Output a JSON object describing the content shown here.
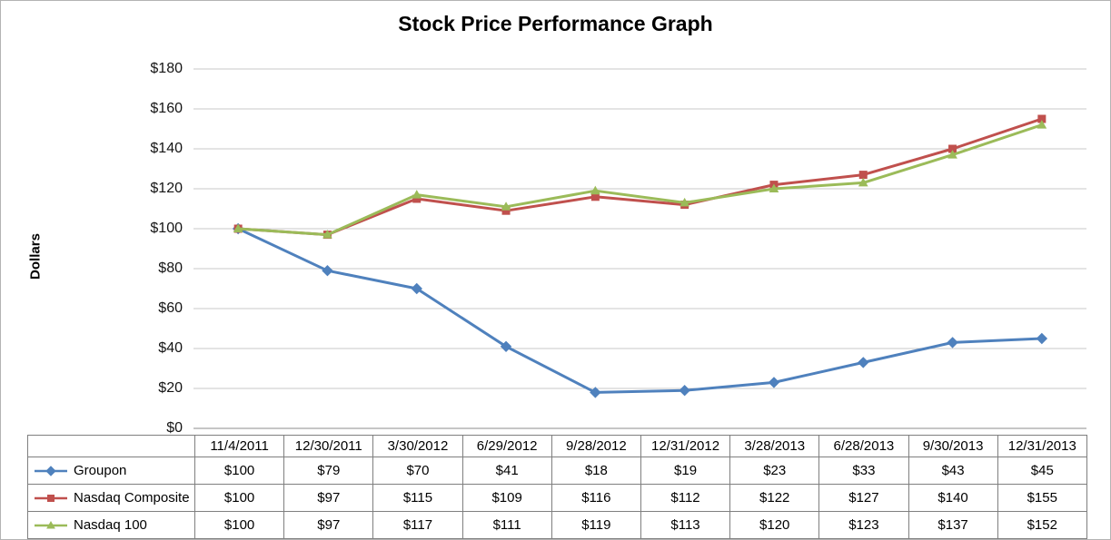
{
  "title": "Stock Price Performance Graph",
  "ylabel": "Dollars",
  "chart_data": {
    "type": "line",
    "categories": [
      "11/4/2011",
      "12/30/2011",
      "3/30/2012",
      "6/29/2012",
      "9/28/2012",
      "12/31/2012",
      "3/28/2013",
      "6/28/2013",
      "9/30/2013",
      "12/31/2013"
    ],
    "series": [
      {
        "name": "Groupon",
        "marker": "diamond",
        "color": "#4f81bd",
        "values": [
          100,
          79,
          70,
          41,
          18,
          19,
          23,
          33,
          43,
          45
        ]
      },
      {
        "name": "Nasdaq Composite",
        "marker": "square",
        "color": "#c0504d",
        "values": [
          100,
          97,
          115,
          109,
          116,
          112,
          122,
          127,
          140,
          155
        ]
      },
      {
        "name": "Nasdaq 100",
        "marker": "triangle",
        "color": "#9bbb59",
        "values": [
          100,
          97,
          117,
          111,
          119,
          113,
          120,
          123,
          137,
          152
        ]
      }
    ],
    "ylim": [
      0,
      180
    ],
    "ystep": 20,
    "value_prefix": "$",
    "grid": true,
    "grid_color": "#c9c9c9",
    "axis_color": "#8c8c8c",
    "legend_position": "table-left"
  }
}
